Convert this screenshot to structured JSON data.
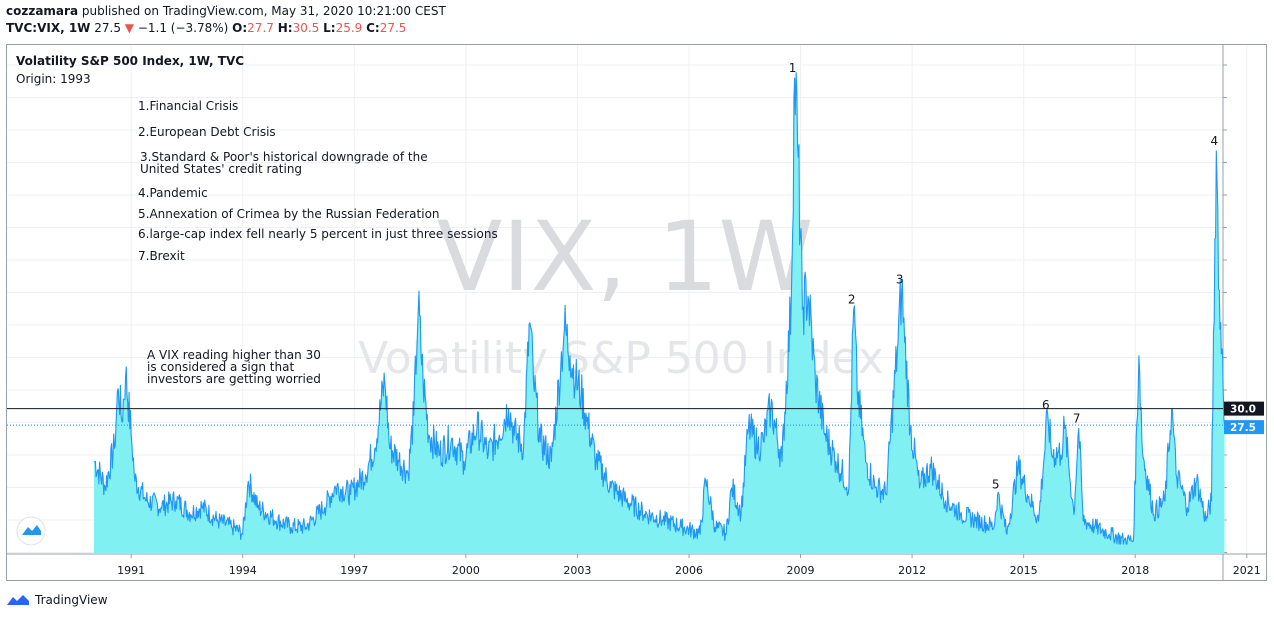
{
  "header": {
    "author": "cozzamara",
    "published_text": "published on TradingView.com, May 31, 2020 10:21:00 CEST",
    "symbol": "TVC:VIX, 1W",
    "last": "27.5",
    "change_arrow": "▼",
    "change": "−1.1 (−3.78%)",
    "o_label": "O:",
    "o_value": "27.7",
    "h_label": "H:",
    "h_value": "30.5",
    "l_label": "L:",
    "l_value": "25.9",
    "c_label": "C:",
    "c_value": "27.5"
  },
  "legend": {
    "title": "Volatility S&P 500 Index, 1W, TVC",
    "origin": "Origin: 1993"
  },
  "watermark": {
    "line1": "VIX, 1W",
    "line2": "Volatility S&P 500 Index"
  },
  "notes": [
    "1.Financial Crisis",
    "2.European Debt Crisis",
    [
      "3.Standard & Poor's historical downgrade of the",
      "United States' credit rating"
    ],
    "4.Pandemic",
    "5.Annexation of Crimea by the Russian Federation",
    "6.large-cap index fell nearly 5 percent in just three sessions",
    "7.Brexit"
  ],
  "threshold_note": [
    "A VIX reading higher than 30",
    "is considered a sign that",
    "investors are getting worried"
  ],
  "price_labels": {
    "threshold": "30.0",
    "last": "27.5"
  },
  "footer": {
    "brand": "TradingView"
  },
  "colors": {
    "line": "#2196f3",
    "fill": "#80f0f2",
    "threshold_line": "#131722",
    "last_line": "#1e88e5",
    "threshold_badge": "#131722",
    "last_badge": "#2196f3",
    "grid": "#eef0f3"
  },
  "chart_data": {
    "type": "area",
    "title": "Volatility S&P 500 Index, 1W, TVC",
    "x_ticks": [
      "1991",
      "1994",
      "1997",
      "2000",
      "2003",
      "2006",
      "2009",
      "2012",
      "2015",
      "2018",
      "2021"
    ],
    "xlim": [
      1990.0,
      2022.7
    ],
    "ylim": [
      8,
      82
    ],
    "grid": true,
    "series": [
      {
        "values": [
          [
            1990.0,
            22
          ],
          [
            1990.3,
            18
          ],
          [
            1990.55,
            24
          ],
          [
            1990.65,
            33
          ],
          [
            1990.75,
            28
          ],
          [
            1990.85,
            35
          ],
          [
            1991.0,
            26
          ],
          [
            1991.1,
            19
          ],
          [
            1991.4,
            16
          ],
          [
            1991.8,
            15
          ],
          [
            1992.2,
            16
          ],
          [
            1992.6,
            14
          ],
          [
            1992.9,
            15
          ],
          [
            1993.3,
            13
          ],
          [
            1993.7,
            12
          ],
          [
            1994.0,
            11
          ],
          [
            1994.15,
            19
          ],
          [
            1994.4,
            15
          ],
          [
            1994.9,
            13
          ],
          [
            1995.3,
            12
          ],
          [
            1995.7,
            12
          ],
          [
            1996.2,
            15
          ],
          [
            1996.5,
            18
          ],
          [
            1996.9,
            17
          ],
          [
            1997.3,
            20
          ],
          [
            1997.55,
            24
          ],
          [
            1997.82,
            34
          ],
          [
            1997.95,
            24
          ],
          [
            1998.2,
            22
          ],
          [
            1998.45,
            20
          ],
          [
            1998.6,
            29
          ],
          [
            1998.72,
            45
          ],
          [
            1998.85,
            34
          ],
          [
            1999.0,
            26
          ],
          [
            1999.3,
            23
          ],
          [
            1999.6,
            25
          ],
          [
            1999.95,
            22
          ],
          [
            2000.3,
            27
          ],
          [
            2000.6,
            23
          ],
          [
            2000.9,
            26
          ],
          [
            2001.15,
            30
          ],
          [
            2001.3,
            26
          ],
          [
            2001.55,
            24
          ],
          [
            2001.72,
            43
          ],
          [
            2001.82,
            34
          ],
          [
            2002.0,
            25
          ],
          [
            2002.3,
            22
          ],
          [
            2002.55,
            36
          ],
          [
            2002.65,
            42
          ],
          [
            2002.8,
            38
          ],
          [
            2002.95,
            34
          ],
          [
            2003.1,
            32
          ],
          [
            2003.25,
            28
          ],
          [
            2003.5,
            22
          ],
          [
            2003.9,
            18
          ],
          [
            2004.3,
            16
          ],
          [
            2004.8,
            14
          ],
          [
            2005.3,
            13
          ],
          [
            2005.8,
            12
          ],
          [
            2006.3,
            11
          ],
          [
            2006.45,
            19
          ],
          [
            2006.7,
            12
          ],
          [
            2007.0,
            11
          ],
          [
            2007.15,
            18
          ],
          [
            2007.4,
            14
          ],
          [
            2007.6,
            27
          ],
          [
            2007.85,
            24
          ],
          [
            2008.0,
            25
          ],
          [
            2008.2,
            30
          ],
          [
            2008.5,
            22
          ],
          [
            2008.75,
            46
          ],
          [
            2008.84,
            80
          ],
          [
            2008.92,
            70
          ],
          [
            2009.05,
            45
          ],
          [
            2009.2,
            47
          ],
          [
            2009.4,
            34
          ],
          [
            2009.65,
            26
          ],
          [
            2009.95,
            22
          ],
          [
            2010.3,
            18
          ],
          [
            2010.43,
            45
          ],
          [
            2010.52,
            33
          ],
          [
            2010.75,
            22
          ],
          [
            2011.0,
            18
          ],
          [
            2011.3,
            17
          ],
          [
            2011.62,
            40
          ],
          [
            2011.72,
            48
          ],
          [
            2011.8,
            40
          ],
          [
            2011.95,
            27
          ],
          [
            2012.2,
            18
          ],
          [
            2012.5,
            21
          ],
          [
            2012.9,
            16
          ],
          [
            2013.3,
            14
          ],
          [
            2013.7,
            13
          ],
          [
            2014.2,
            12
          ],
          [
            2014.3,
            17
          ],
          [
            2014.55,
            11
          ],
          [
            2014.85,
            21
          ],
          [
            2015.1,
            17
          ],
          [
            2015.4,
            13
          ],
          [
            2015.65,
            29
          ],
          [
            2015.75,
            23
          ],
          [
            2016.0,
            23
          ],
          [
            2016.1,
            27
          ],
          [
            2016.35,
            14
          ],
          [
            2016.48,
            27
          ],
          [
            2016.6,
            13
          ],
          [
            2016.9,
            12
          ],
          [
            2017.3,
            11
          ],
          [
            2017.7,
            10
          ],
          [
            2017.95,
            10
          ],
          [
            2018.1,
            38
          ],
          [
            2018.2,
            23
          ],
          [
            2018.5,
            14
          ],
          [
            2018.8,
            16
          ],
          [
            2018.98,
            30
          ],
          [
            2019.1,
            20
          ],
          [
            2019.4,
            15
          ],
          [
            2019.65,
            19
          ],
          [
            2019.9,
            13
          ],
          [
            2020.05,
            16
          ],
          [
            2020.18,
            69
          ],
          [
            2020.28,
            42
          ],
          [
            2020.35,
            38
          ],
          [
            2020.4,
            27.5
          ]
        ]
      }
    ],
    "annotations": [
      {
        "text": "1",
        "x": 2008.84,
        "y": 80
      },
      {
        "text": "2",
        "x": 2010.43,
        "y": 45
      },
      {
        "text": "3",
        "x": 2011.72,
        "y": 48
      },
      {
        "text": "4",
        "x": 2020.18,
        "y": 69
      },
      {
        "text": "5",
        "x": 2014.3,
        "y": 17
      },
      {
        "text": "6",
        "x": 2015.65,
        "y": 29
      },
      {
        "text": "7",
        "x": 2016.48,
        "y": 27
      }
    ],
    "hlines": [
      {
        "value": 30.0,
        "label": "30.0"
      },
      {
        "value": 27.5,
        "label": "27.5"
      }
    ]
  }
}
